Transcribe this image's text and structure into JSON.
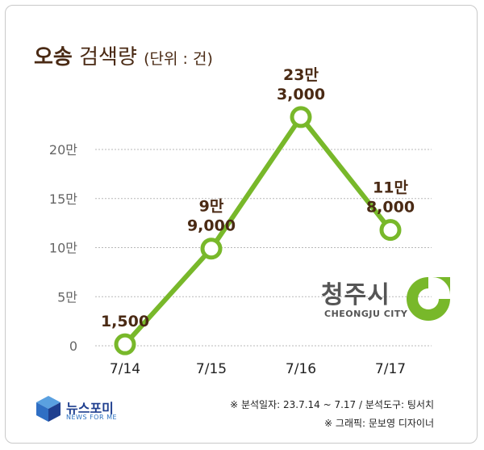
{
  "title": {
    "main": "오송",
    "rest": "검색량",
    "unit": "(단위 : 건)"
  },
  "colors": {
    "line": "#78b82a",
    "marker_fill": "#ffffff",
    "label": "#4a2a14",
    "grid": "#b8b8b8"
  },
  "chart_data": {
    "type": "line",
    "title": "오송 검색량 (단위 : 건)",
    "categories": [
      "7/14",
      "7/15",
      "7/16",
      "7/17"
    ],
    "values": [
      1500,
      99000,
      233000,
      118000
    ],
    "data_labels": [
      [
        "1,500"
      ],
      [
        "9만",
        "9,000"
      ],
      [
        "23만",
        "3,000"
      ],
      [
        "11만",
        "8,000"
      ]
    ],
    "yticks": [
      "0",
      "5만",
      "10만",
      "15만",
      "20만"
    ],
    "ytick_values": [
      0,
      50000,
      100000,
      150000,
      200000
    ],
    "ylim": [
      0,
      200000
    ],
    "grid": true,
    "xlabel": "",
    "ylabel": ""
  },
  "city_logo": {
    "korean": "청주시",
    "english": "CHEONGJU CITY"
  },
  "publisher": {
    "name": "뉴스포미",
    "tagline": "NEWS FOR ME"
  },
  "source": {
    "line1": "※ 분석일자: 23.7.14 ~ 7.17  / 분석도구: 팅서치",
    "line2": "※ 그래픽: 문보영 디자이너"
  }
}
